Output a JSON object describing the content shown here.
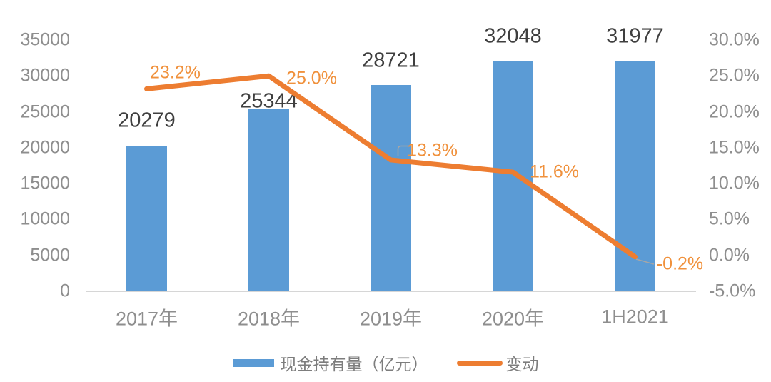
{
  "chart_data": {
    "type": "combo",
    "title": "",
    "categories": [
      "2017年",
      "2018年",
      "2019年",
      "2020年",
      "1H2021"
    ],
    "series": [
      {
        "name": "现金持有量（亿元）",
        "type": "bar",
        "axis": "left",
        "color": "#5B9BD5",
        "values": [
          20279,
          25344,
          28721,
          32048,
          31977
        ],
        "labels": [
          "20279",
          "25344",
          "28721",
          "32048",
          "31977"
        ]
      },
      {
        "name": "变动",
        "type": "line",
        "axis": "right",
        "color": "#ED7D31",
        "values": [
          23.2,
          25.0,
          13.3,
          11.6,
          -0.2
        ],
        "labels": [
          "23.2%",
          "25.0%",
          "13.3%",
          "11.6%",
          "-0.2%"
        ]
      }
    ],
    "left_axis": {
      "min": 0,
      "max": 35000,
      "step": 5000,
      "ticks": [
        "35000",
        "30000",
        "25000",
        "20000",
        "15000",
        "10000",
        "5000",
        "0"
      ]
    },
    "right_axis": {
      "min": -5,
      "max": 30,
      "step": 5,
      "ticks": [
        "30.0%",
        "25.0%",
        "20.0%",
        "15.0%",
        "10.0%",
        "5.0%",
        "0.0%",
        "-5.0%"
      ]
    },
    "legend": [
      {
        "label": "现金持有量（亿元）",
        "marker": "bar",
        "color": "#5B9BD5"
      },
      {
        "label": "变动",
        "marker": "line",
        "color": "#ED7D31"
      }
    ],
    "grid": false,
    "legend_position": "bottom"
  },
  "colors": {
    "background": "#FFFFFF",
    "bar": "#5B9BD5",
    "line": "#ED7D31",
    "line_label": "#F0913C",
    "bar_label": "#3F3F3F",
    "axis_text": "#8E8E8E",
    "axis_line": "#D6D6D6",
    "leader_line": "#A6A6A6"
  }
}
